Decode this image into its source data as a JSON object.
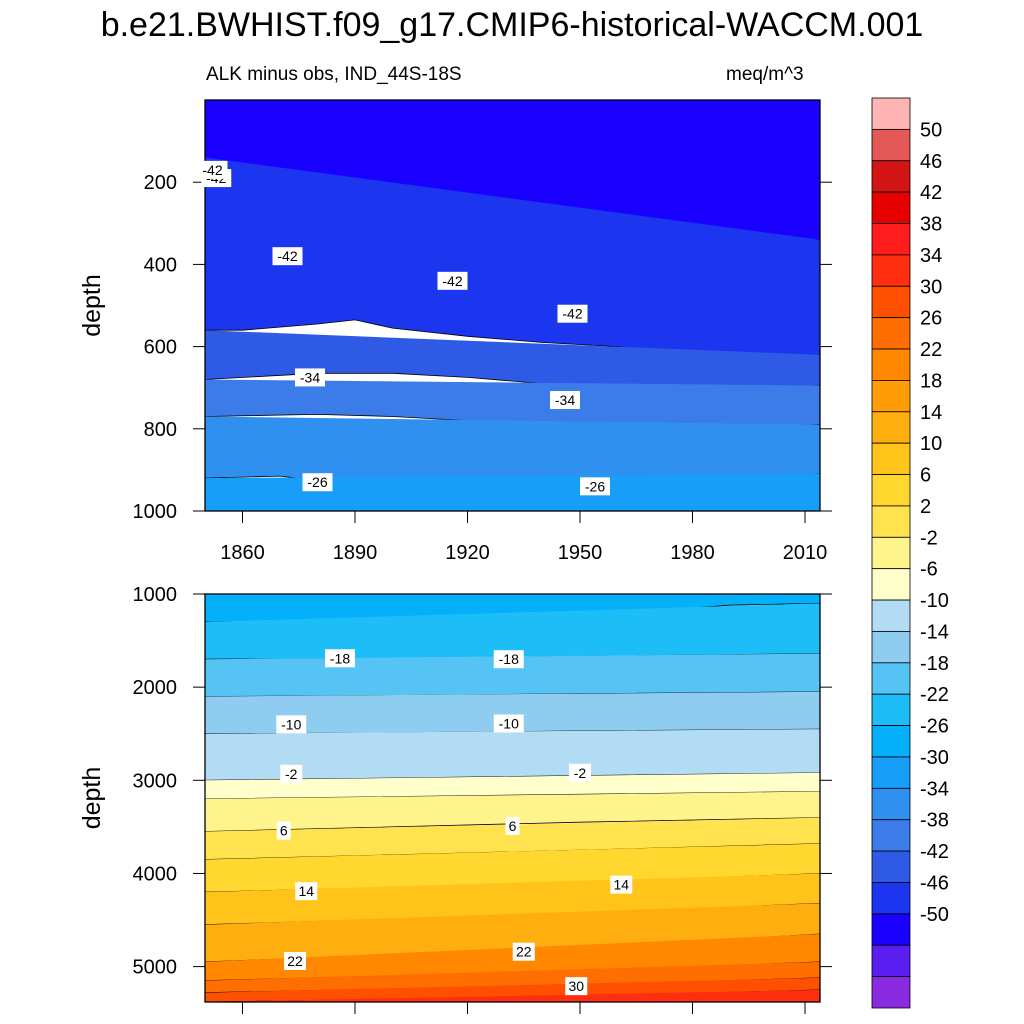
{
  "title": "b.e21.BWHIST.f09_g17.CMIP6-historical-WACCM.001",
  "subtitle_left": "ALK minus obs, IND_44S-18S",
  "subtitle_right": "meq/m^3",
  "colors": {
    "levels": [
      "#8a2be2",
      "#5a1ef0",
      "#1a00ff",
      "#1c35ee",
      "#2f5ae6",
      "#3c7ce8",
      "#2f90f0",
      "#169ef8",
      "#04b0fa",
      "#1dbdf8",
      "#55c4f4",
      "#8ecdef",
      "#b2dcf4",
      "#ffffcc",
      "#fff38c",
      "#ffe24d",
      "#ffd72e",
      "#ffc31a",
      "#ffae10",
      "#ff9c06",
      "#ff8800",
      "#ff6e00",
      "#ff5000",
      "#ff2e10",
      "#ff1c1c",
      "#e60000",
      "#d21414",
      "#e45858",
      "#ffb4b4"
    ]
  },
  "chart_data": [
    {
      "type": "contour",
      "panel": "upper",
      "xlabel": "",
      "ylabel": "depth",
      "xlim": [
        1850,
        2014
      ],
      "ylim": [
        1000,
        0
      ],
      "x_ticks": [
        1860,
        1890,
        1920,
        1950,
        1980,
        2010
      ],
      "x_tick_labels": [
        "1860",
        "1890",
        "1920",
        "1950",
        "1980",
        "2010"
      ],
      "y_ticks": [
        200,
        400,
        600,
        800,
        1000
      ],
      "y_tick_labels": [
        "200",
        "400",
        "600",
        "800",
        "1000"
      ],
      "bands": [
        {
          "range": [
            -50,
            -46
          ],
          "color_index": 1,
          "top": [
            [
              1850,
              0
            ],
            [
              2014,
              0
            ]
          ],
          "bottom": [
            [
              1850,
              0
            ],
            [
              1870,
              5
            ],
            [
              1890,
              5
            ],
            [
              1900,
              190
            ],
            [
              1930,
              210
            ],
            [
              1960,
              190
            ],
            [
              1975,
              235
            ],
            [
              1985,
              260
            ],
            [
              1995,
              200
            ],
            [
              2014,
              230
            ]
          ]
        },
        {
          "range": [
            -46,
            -42
          ],
          "color_index": 2,
          "top": [
            [
              1850,
              0
            ],
            [
              2014,
              0
            ]
          ],
          "bottom": [
            [
              1850,
              140
            ],
            [
              1860,
              200
            ],
            [
              1880,
              235
            ],
            [
              1900,
              250
            ],
            [
              1920,
              255
            ],
            [
              1940,
              265
            ],
            [
              1955,
              275
            ],
            [
              1970,
              300
            ],
            [
              1985,
              330
            ],
            [
              2000,
              340
            ],
            [
              2014,
              340
            ]
          ]
        },
        {
          "range": [
            -42,
            -38
          ],
          "color_index": 3,
          "top": [
            [
              1850,
              140
            ],
            [
              2014,
              340
            ]
          ],
          "bottom": [
            [
              1850,
              560
            ],
            [
              1860,
              560
            ],
            [
              1880,
              545
            ],
            [
              1890,
              535
            ],
            [
              1900,
              555
            ],
            [
              1920,
              575
            ],
            [
              1940,
              590
            ],
            [
              1960,
              600
            ],
            [
              1980,
              620
            ],
            [
              2000,
              630
            ],
            [
              2014,
              620
            ]
          ]
        },
        {
          "range": [
            -38,
            -34
          ],
          "color_index": 4,
          "top": [
            [
              1850,
              560
            ],
            [
              2014,
              620
            ]
          ],
          "bottom": [
            [
              1850,
              680
            ],
            [
              1880,
              665
            ],
            [
              1900,
              665
            ],
            [
              1920,
              675
            ],
            [
              1940,
              690
            ],
            [
              1960,
              700
            ],
            [
              1980,
              705
            ],
            [
              2000,
              700
            ],
            [
              2014,
              695
            ]
          ]
        },
        {
          "range": [
            -34,
            -30
          ],
          "color_index": 5,
          "top": [
            [
              1850,
              680
            ],
            [
              2014,
              695
            ]
          ],
          "bottom": [
            [
              1850,
              770
            ],
            [
              1880,
              765
            ],
            [
              1900,
              770
            ],
            [
              1920,
              780
            ],
            [
              1940,
              790
            ],
            [
              1960,
              795
            ],
            [
              1980,
              800
            ],
            [
              2000,
              795
            ],
            [
              2014,
              790
            ]
          ]
        },
        {
          "range": [
            -30,
            -26
          ],
          "color_index": 6,
          "top": [
            [
              1850,
              770
            ],
            [
              2014,
              790
            ]
          ],
          "bottom": [
            [
              1850,
              920
            ],
            [
              1870,
              915
            ],
            [
              1890,
              935
            ],
            [
              1920,
              930
            ],
            [
              1950,
              935
            ],
            [
              1980,
              925
            ],
            [
              2000,
              920
            ],
            [
              2014,
              910
            ]
          ]
        },
        {
          "range": [
            -26,
            -22
          ],
          "color_index": 7,
          "top": [
            [
              1850,
              920
            ],
            [
              2014,
              910
            ]
          ],
          "bottom": [
            [
              1850,
              1000
            ],
            [
              2014,
              1000
            ]
          ]
        }
      ],
      "contour_labels": [
        {
          "text": "-42",
          "x": 1853,
          "y": 190
        },
        {
          "text": "-42",
          "x": 1852,
          "y": 170
        },
        {
          "text": "-42",
          "x": 1872,
          "y": 380
        },
        {
          "text": "-42",
          "x": 1916,
          "y": 440
        },
        {
          "text": "-42",
          "x": 1948,
          "y": 520
        },
        {
          "text": "-34",
          "x": 1878,
          "y": 675
        },
        {
          "text": "-34",
          "x": 1946,
          "y": 730
        },
        {
          "text": "-26",
          "x": 1880,
          "y": 930
        },
        {
          "text": "-26",
          "x": 1954,
          "y": 940
        }
      ]
    },
    {
      "type": "contour",
      "panel": "lower",
      "xlabel": "",
      "ylabel": "depth",
      "xlim": [
        1850,
        2014
      ],
      "ylim": [
        5380,
        1000
      ],
      "y_ticks": [
        1000,
        2000,
        3000,
        4000,
        5000
      ],
      "y_tick_labels": [
        "1000",
        "2000",
        "3000",
        "4000",
        "5000"
      ],
      "bands": [
        {
          "range": [
            -22,
            -18
          ],
          "color_index": 8,
          "top": [
            [
              1850,
              1000
            ],
            [
              2014,
              1000
            ]
          ],
          "bottom": [
            [
              1850,
              1300
            ],
            [
              1900,
              1280
            ],
            [
              1950,
              1240
            ],
            [
              1990,
              1120
            ],
            [
              2014,
              1100
            ]
          ]
        },
        {
          "range": [
            -18,
            -14
          ],
          "color_index": 9,
          "top": [
            [
              1850,
              1300
            ],
            [
              2014,
              1100
            ]
          ],
          "bottom": [
            [
              1850,
              1700
            ],
            [
              1900,
              1690
            ],
            [
              1950,
              1670
            ],
            [
              2014,
              1640
            ]
          ]
        },
        {
          "range": [
            -14,
            -10
          ],
          "color_index": 10,
          "top": [
            [
              1850,
              1700
            ],
            [
              2014,
              1640
            ]
          ],
          "bottom": [
            [
              1850,
              2100
            ],
            [
              1900,
              2090
            ],
            [
              1950,
              2070
            ],
            [
              2014,
              2050
            ]
          ]
        },
        {
          "range": [
            -10,
            -6
          ],
          "color_index": 11,
          "top": [
            [
              1850,
              2100
            ],
            [
              2014,
              2050
            ]
          ],
          "bottom": [
            [
              1850,
              2500
            ],
            [
              1900,
              2490
            ],
            [
              1950,
              2470
            ],
            [
              2014,
              2450
            ]
          ]
        },
        {
          "range": [
            -6,
            -2
          ],
          "color_index": 12,
          "top": [
            [
              1850,
              2500
            ],
            [
              2014,
              2450
            ]
          ],
          "bottom": [
            [
              1850,
              3000
            ],
            [
              1900,
              2975
            ],
            [
              1950,
              2950
            ],
            [
              2014,
              2920
            ]
          ]
        },
        {
          "range": [
            -2,
            2
          ],
          "color_index": 13,
          "top": [
            [
              1850,
              3000
            ],
            [
              2014,
              2920
            ]
          ],
          "bottom": [
            [
              1850,
              3200
            ],
            [
              1950,
              3150
            ],
            [
              2014,
              3120
            ]
          ]
        },
        {
          "range": [
            2,
            6
          ],
          "color_index": 14,
          "top": [
            [
              1850,
              3200
            ],
            [
              2014,
              3120
            ]
          ],
          "bottom": [
            [
              1850,
              3550
            ],
            [
              1950,
              3450
            ],
            [
              2014,
              3400
            ]
          ]
        },
        {
          "range": [
            6,
            10
          ],
          "color_index": 15,
          "top": [
            [
              1850,
              3550
            ],
            [
              2014,
              3400
            ]
          ],
          "bottom": [
            [
              1850,
              3850
            ],
            [
              1950,
              3750
            ],
            [
              2014,
              3680
            ]
          ]
        },
        {
          "range": [
            10,
            14
          ],
          "color_index": 16,
          "top": [
            [
              1850,
              3850
            ],
            [
              2014,
              3680
            ]
          ],
          "bottom": [
            [
              1850,
              4200
            ],
            [
              1950,
              4100
            ],
            [
              2014,
              4000
            ]
          ]
        },
        {
          "range": [
            14,
            18
          ],
          "color_index": 17,
          "top": [
            [
              1850,
              4200
            ],
            [
              2014,
              4000
            ]
          ],
          "bottom": [
            [
              1850,
              4550
            ],
            [
              1950,
              4430
            ],
            [
              2014,
              4320
            ]
          ]
        },
        {
          "range": [
            18,
            22
          ],
          "color_index": 18,
          "top": [
            [
              1850,
              4550
            ],
            [
              2014,
              4320
            ]
          ],
          "bottom": [
            [
              1850,
              4950
            ],
            [
              1950,
              4800
            ],
            [
              2014,
              4650
            ]
          ]
        },
        {
          "range": [
            22,
            26
          ],
          "color_index": 20,
          "top": [
            [
              1850,
              4950
            ],
            [
              2014,
              4650
            ]
          ],
          "bottom": [
            [
              1850,
              5150
            ],
            [
              1950,
              5050
            ],
            [
              2014,
              4950
            ]
          ]
        },
        {
          "range": [
            26,
            30
          ],
          "color_index": 21,
          "top": [
            [
              1850,
              5150
            ],
            [
              2014,
              4950
            ]
          ],
          "bottom": [
            [
              1850,
              5280
            ],
            [
              1950,
              5200
            ],
            [
              2014,
              5120
            ]
          ]
        },
        {
          "range": [
            30,
            34
          ],
          "color_index": 22,
          "top": [
            [
              1850,
              5280
            ],
            [
              2014,
              5120
            ]
          ],
          "bottom": [
            [
              1850,
              5380
            ],
            [
              1950,
              5320
            ],
            [
              2014,
              5250
            ]
          ]
        },
        {
          "range": [
            34,
            38
          ],
          "color_index": 23,
          "top": [
            [
              1850,
              5380
            ],
            [
              2014,
              5250
            ]
          ],
          "bottom": [
            [
              1850,
              5380
            ],
            [
              2014,
              5380
            ]
          ]
        }
      ],
      "contour_labels": [
        {
          "text": "-18",
          "x": 1886,
          "y": 1690
        },
        {
          "text": "-18",
          "x": 1931,
          "y": 1700
        },
        {
          "text": "-10",
          "x": 1873,
          "y": 2400
        },
        {
          "text": "-10",
          "x": 1931,
          "y": 2390
        },
        {
          "text": "-2",
          "x": 1873,
          "y": 2930
        },
        {
          "text": "-2",
          "x": 1950,
          "y": 2920
        },
        {
          "text": "6",
          "x": 1871,
          "y": 3540
        },
        {
          "text": "6",
          "x": 1932,
          "y": 3490
        },
        {
          "text": "14",
          "x": 1877,
          "y": 4190
        },
        {
          "text": "14",
          "x": 1961,
          "y": 4120
        },
        {
          "text": "22",
          "x": 1874,
          "y": 4940
        },
        {
          "text": "22",
          "x": 1935,
          "y": 4840
        },
        {
          "text": "30",
          "x": 1949,
          "y": 5210
        }
      ]
    }
  ],
  "colorbar": {
    "labels": [
      "50",
      "46",
      "42",
      "38",
      "34",
      "30",
      "26",
      "22",
      "18",
      "14",
      "10",
      "6",
      "2",
      "-2",
      "-6",
      "-10",
      "-14",
      "-18",
      "-22",
      "-26",
      "-30",
      "-34",
      "-38",
      "-42",
      "-46",
      "-50"
    ],
    "colors_top_to_bottom": [
      "#ffb4b4",
      "#e45858",
      "#d21414",
      "#e60000",
      "#ff1c1c",
      "#ff2e10",
      "#ff5000",
      "#ff6e00",
      "#ff8800",
      "#ff9c06",
      "#ffae10",
      "#ffc31a",
      "#ffd72e",
      "#ffe24d",
      "#fff38c",
      "#ffffcc",
      "#b2dcf4",
      "#8ecdef",
      "#55c4f4",
      "#1dbdf8",
      "#04b0fa",
      "#169ef8",
      "#2f90f0",
      "#3c7ce8",
      "#2f5ae6",
      "#1c35ee",
      "#1a00ff",
      "#5a1ef0",
      "#8a2be2"
    ]
  }
}
